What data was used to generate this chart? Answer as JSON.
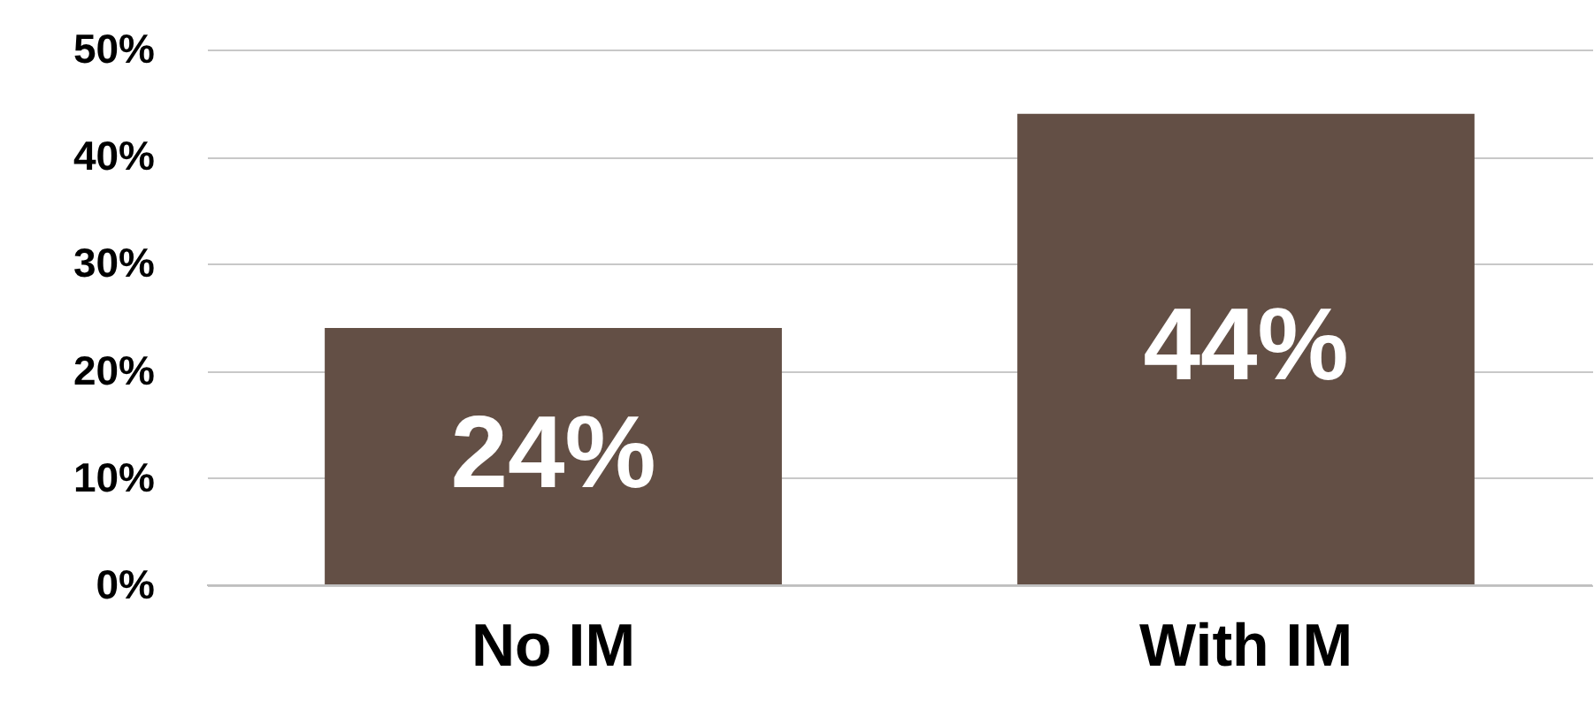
{
  "chart_data": {
    "type": "bar",
    "categories": [
      "No IM",
      "With IM"
    ],
    "values": [
      24,
      44
    ],
    "color": "#634f45",
    "ylim": [
      0,
      50
    ],
    "yticks": [
      {
        "value": 0,
        "label": "0%"
      },
      {
        "value": 10,
        "label": "10%"
      },
      {
        "value": 20,
        "label": "20%"
      },
      {
        "value": 30,
        "label": "30%"
      },
      {
        "value": 40,
        "label": "40%"
      },
      {
        "value": 50,
        "label": "50%"
      }
    ],
    "grid": "y",
    "value_labels": [
      "24%",
      "44%"
    ]
  }
}
